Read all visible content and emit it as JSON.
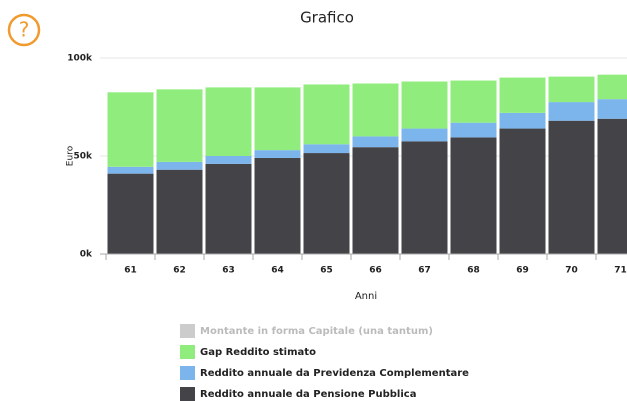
{
  "chart_data": {
    "type": "stacked-bar",
    "title": "Grafico",
    "icon_label": "?",
    "y_label": "Euro",
    "x_label": "Anni",
    "categories": [
      "61",
      "62",
      "63",
      "64",
      "65",
      "66",
      "67",
      "68",
      "69",
      "70",
      "71"
    ],
    "series": [
      {
        "name": "Montante in forma Capitale (una tantum)",
        "color": "#cccccc",
        "hidden": true,
        "values": [
          null,
          null,
          null,
          null,
          null,
          null,
          null,
          null,
          null,
          null,
          null
        ]
      },
      {
        "name": "Gap Reddito stimato",
        "color": "#90ed7d",
        "values": [
          38,
          37,
          35,
          32,
          30.5,
          27,
          24,
          21.5,
          18,
          13,
          12.5
        ]
      },
      {
        "name": "Reddito annuale da Previdenza Complementare",
        "color": "#7cb5ec",
        "values": [
          3.5,
          4,
          4,
          4,
          4.5,
          5.5,
          6.5,
          7.5,
          8,
          9.5,
          10
        ]
      },
      {
        "name": "Reddito annuale da Pensione Pubblica",
        "color": "#434348",
        "values": [
          41,
          43,
          46,
          49,
          51.5,
          54.5,
          57.5,
          59.5,
          64,
          68,
          69
        ]
      }
    ],
    "ylim": [
      0,
      100
    ],
    "yticks": [
      {
        "value": 0,
        "label": "0k"
      },
      {
        "value": 50,
        "label": "50k"
      },
      {
        "value": 100,
        "label": "100k"
      }
    ],
    "grid": true
  }
}
